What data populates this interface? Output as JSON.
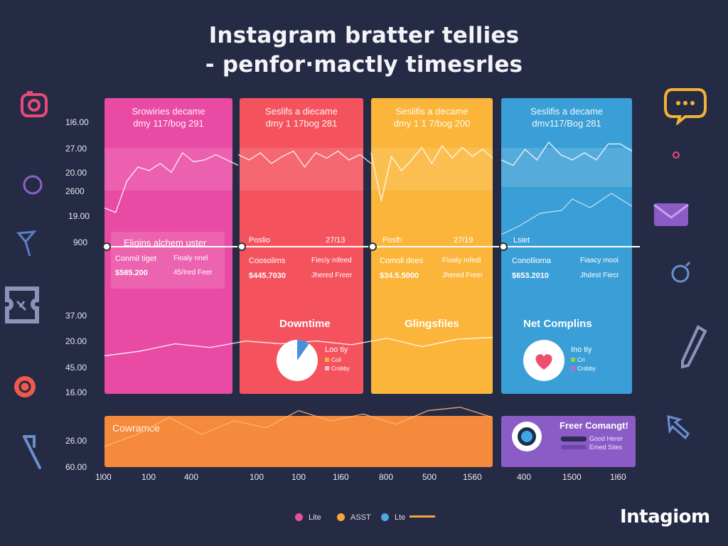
{
  "title": {
    "line1": "Instagram bratter tellies",
    "line2": "- penfor·mactly timesrles"
  },
  "y_labels": [
    "1l6.00",
    "27.00",
    "20.00",
    "2600",
    "19.00",
    "900",
    "37.00",
    "20.00",
    "45.00",
    "16.00",
    "26.00",
    "60.00"
  ],
  "x_labels": [
    "1l00",
    "100",
    "400",
    "100",
    "100",
    "1l60",
    "800",
    "500",
    "1560",
    "400",
    "1500",
    "1l60"
  ],
  "panels": [
    {
      "header1": "Srowiries decame",
      "header2": "dmy 117/bog 291",
      "box_title": "Eligins alchem uster",
      "box_col1": "Conmil tiget",
      "box_col2": "Fioaly nnel",
      "box_val1": "$585.200",
      "box_val2": "45/Ired Feer"
    },
    {
      "header1": "Seslifs a diecame",
      "header2": "dmy 1 17bog 281",
      "box_title": "Poslio",
      "box_num": "27/13",
      "box_col1": "Coosolims",
      "box_col2": "Fieciy mfeed",
      "box_val1": "$445.7030",
      "box_val2": "Jhered Freer",
      "card_title": "Downtime",
      "legend_title": "Loo tiy",
      "legend_1": "Coll",
      "legend_2": "Crobby"
    },
    {
      "header1": "Seslifis a decame",
      "header2": "dmy 1 1 7/bog 200",
      "box_title": "Poslh",
      "box_num": "27/19",
      "box_col1": "Comoll does",
      "box_col2": "Fioaty mfedl",
      "box_val1": "$34.5.5000",
      "box_val2": "Jhered Freer",
      "card_title": "Glingsfiles"
    },
    {
      "header1": "Seslifis a decame",
      "header2": "dmv117/Bog 281",
      "box_title": "Lsiet",
      "box_col1": "Conollioma",
      "box_col2": "Fiaacy mool",
      "box_val1": "$653.2010",
      "box_val2": "Jhdest Fiecr",
      "card_title": "Net Complins",
      "legend_title": "Ino tiy",
      "legend_1": "Crl",
      "legend_2": "Crobby"
    }
  ],
  "bottom": {
    "label": "Cowramce",
    "card_title": "Freer Comangt!",
    "card_line1": "Good Herer",
    "card_line2": "Emed Sites"
  },
  "legend": [
    {
      "label": "Lite",
      "color": "#e84f9b"
    },
    {
      "label": "ASST",
      "color": "#f6a83a"
    },
    {
      "label": "Lte",
      "color": "#4fa8e0"
    }
  ],
  "brand": "Intagiom",
  "colors": {
    "pink": "#e94aa4",
    "red": "#f4535e",
    "yellow": "#fbb53a",
    "blue": "#3a9fd6",
    "orange": "#f58a3c",
    "purple": "#8b5bc6",
    "bg": "#262b45"
  },
  "chart_data": {
    "type": "line",
    "series": [
      {
        "values": [
          20.0,
          19.5,
          23.0,
          24.6,
          24.2,
          25.0,
          24.0,
          26.2,
          25.2,
          25.4,
          26.0,
          25.4,
          24.8
        ]
      },
      {
        "values": [
          26.0,
          25.4,
          26.2,
          25.0,
          25.8,
          26.4,
          24.6,
          26.2,
          25.6,
          26.4,
          25.4,
          26.0,
          25.0
        ]
      },
      {
        "values": [
          26.2,
          20.8,
          25.8,
          24.2,
          25.4,
          26.8,
          25.0,
          27.0,
          25.6,
          26.8,
          25.8,
          26.6,
          25.6
        ]
      },
      {
        "values": [
          25.4,
          24.8,
          26.6,
          25.4,
          27.4,
          26.0,
          25.4,
          26.2,
          25.4,
          27.2,
          27.2,
          26.4
        ]
      },
      {
        "values": [
          13.0,
          14.0,
          15.6,
          14.8,
          16.2,
          15.6,
          16.2,
          15.4,
          16.8,
          15.0,
          16.6,
          17.0
        ]
      },
      {
        "values": [
          3.5,
          4.2,
          5.2,
          4.2,
          5.0,
          4.6,
          5.6,
          5.0,
          5.4,
          4.8,
          5.6,
          5.8,
          5.2
        ]
      }
    ]
  }
}
